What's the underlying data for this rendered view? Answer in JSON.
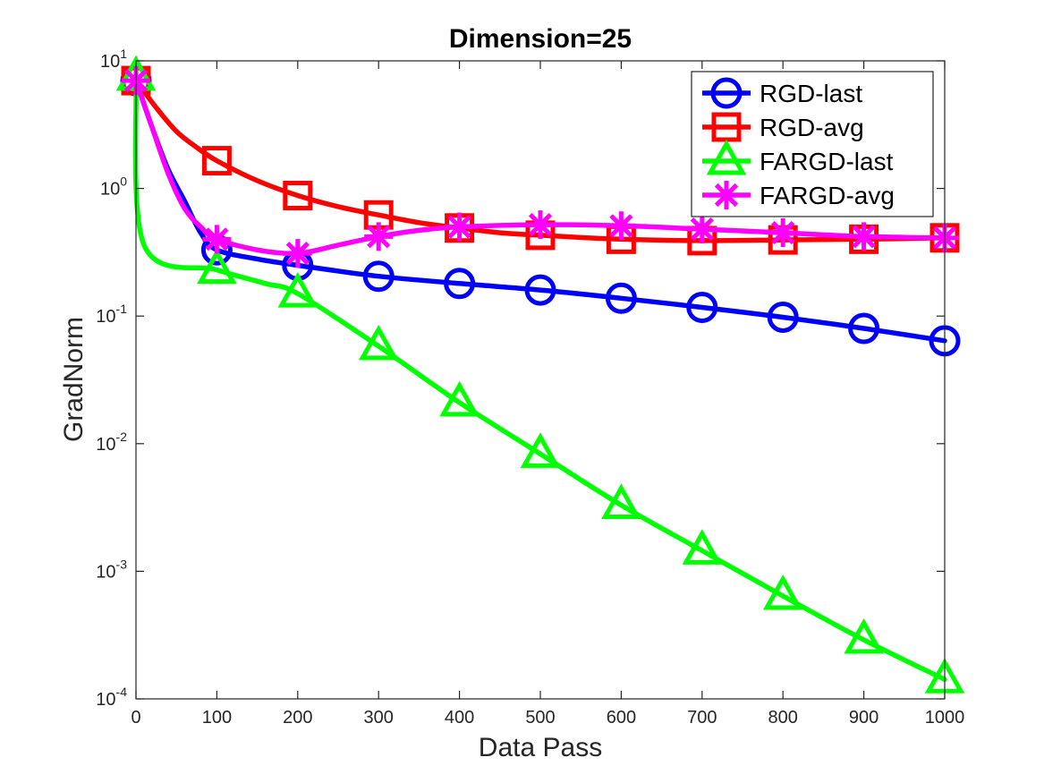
{
  "chart_data": {
    "type": "line",
    "title": "Dimension=25",
    "xlabel": "Data Pass",
    "ylabel": "GradNorm",
    "xlim": [
      0,
      1000
    ],
    "ylim": [
      0.0001,
      10
    ],
    "yscale": "log",
    "xticks": [
      "0",
      "100",
      "200",
      "300",
      "400",
      "500",
      "600",
      "700",
      "800",
      "900",
      "1000"
    ],
    "yticks": [
      {
        "base": "10",
        "exp": "-4",
        "value": 0.0001
      },
      {
        "base": "10",
        "exp": "-3",
        "value": 0.001
      },
      {
        "base": "10",
        "exp": "-2",
        "value": 0.01
      },
      {
        "base": "10",
        "exp": "-1",
        "value": 0.1
      },
      {
        "base": "10",
        "exp": "0",
        "value": 1
      },
      {
        "base": "10",
        "exp": "1",
        "value": 10
      }
    ],
    "grid": false,
    "legend_position": "top-right",
    "series": [
      {
        "name": "RGD-last",
        "color": "#0000ff",
        "marker": "circle",
        "x": [
          0,
          100,
          200,
          300,
          400,
          500,
          600,
          700,
          800,
          900,
          1000
        ],
        "y": [
          7.0,
          0.33,
          0.25,
          0.205,
          0.18,
          0.16,
          0.138,
          0.117,
          0.098,
          0.08,
          0.064
        ],
        "curve": [
          [
            0,
            7.0
          ],
          [
            20,
            3.0
          ],
          [
            40,
            1.4
          ],
          [
            60,
            0.8
          ],
          [
            80,
            0.45
          ],
          [
            100,
            0.33
          ],
          [
            150,
            0.28
          ],
          [
            200,
            0.25
          ],
          [
            300,
            0.205
          ],
          [
            400,
            0.18
          ],
          [
            500,
            0.16
          ],
          [
            600,
            0.138
          ],
          [
            700,
            0.117
          ],
          [
            800,
            0.098
          ],
          [
            900,
            0.08
          ],
          [
            1000,
            0.064
          ]
        ]
      },
      {
        "name": "RGD-avg",
        "color": "#ff0000",
        "marker": "square",
        "x": [
          0,
          100,
          200,
          300,
          400,
          500,
          600,
          700,
          800,
          900,
          1000
        ],
        "y": [
          7.0,
          1.65,
          0.88,
          0.62,
          0.49,
          0.43,
          0.4,
          0.39,
          0.395,
          0.4,
          0.41
        ],
        "curve": [
          [
            0,
            7.0
          ],
          [
            25,
            4.3
          ],
          [
            50,
            2.8
          ],
          [
            75,
            2.1
          ],
          [
            100,
            1.65
          ],
          [
            150,
            1.15
          ],
          [
            200,
            0.88
          ],
          [
            250,
            0.72
          ],
          [
            300,
            0.62
          ],
          [
            350,
            0.54
          ],
          [
            400,
            0.49
          ],
          [
            450,
            0.45
          ],
          [
            500,
            0.43
          ],
          [
            600,
            0.4
          ],
          [
            700,
            0.39
          ],
          [
            800,
            0.395
          ],
          [
            900,
            0.4
          ],
          [
            1000,
            0.41
          ]
        ]
      },
      {
        "name": "FARGD-last",
        "color": "#00ff00",
        "marker": "triangle",
        "x": [
          0,
          100,
          200,
          300,
          400,
          500,
          600,
          700,
          800,
          900,
          1000
        ],
        "y": [
          7.5,
          0.23,
          0.15,
          0.058,
          0.021,
          0.0083,
          0.0033,
          0.00145,
          0.00064,
          0.00029,
          0.000142
        ],
        "curve": [
          [
            0,
            7.5
          ],
          [
            10,
            0.36
          ],
          [
            100,
            0.23
          ],
          [
            160,
            0.18
          ],
          [
            200,
            0.15
          ],
          [
            300,
            0.058
          ],
          [
            400,
            0.021
          ],
          [
            500,
            0.0083
          ],
          [
            600,
            0.0033
          ],
          [
            700,
            0.00145
          ],
          [
            800,
            0.00064
          ],
          [
            900,
            0.00029
          ],
          [
            1000,
            0.000142
          ]
        ]
      },
      {
        "name": "FARGD-avg",
        "color": "#ff00ff",
        "marker": "asterisk",
        "x": [
          0,
          100,
          200,
          300,
          400,
          500,
          600,
          700,
          800,
          900,
          1000
        ],
        "y": [
          7.0,
          0.4,
          0.31,
          0.42,
          0.5,
          0.52,
          0.51,
          0.48,
          0.45,
          0.42,
          0.41
        ],
        "curve": [
          [
            0,
            7.0
          ],
          [
            20,
            3.0
          ],
          [
            40,
            1.3
          ],
          [
            60,
            0.7
          ],
          [
            80,
            0.5
          ],
          [
            100,
            0.4
          ],
          [
            150,
            0.33
          ],
          [
            200,
            0.31
          ],
          [
            250,
            0.36
          ],
          [
            300,
            0.42
          ],
          [
            350,
            0.47
          ],
          [
            400,
            0.5
          ],
          [
            500,
            0.52
          ],
          [
            600,
            0.51
          ],
          [
            700,
            0.48
          ],
          [
            800,
            0.45
          ],
          [
            900,
            0.42
          ],
          [
            1000,
            0.41
          ]
        ]
      }
    ]
  }
}
